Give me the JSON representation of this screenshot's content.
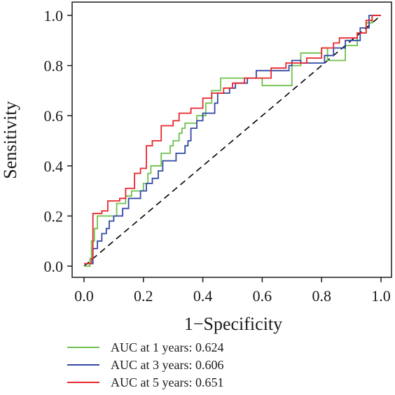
{
  "chart_data": {
    "type": "line",
    "title": "",
    "xlabel": "1−Specificity",
    "ylabel": "Sensitivity",
    "xlim": [
      0,
      1
    ],
    "ylim": [
      0,
      1
    ],
    "xticks": [
      0.0,
      0.2,
      0.4,
      0.6,
      0.8,
      1.0
    ],
    "yticks": [
      0.0,
      0.2,
      0.4,
      0.6,
      0.8,
      1.0
    ],
    "xtick_labels": [
      "0.0",
      "0.2",
      "0.4",
      "0.6",
      "0.8",
      "1.0"
    ],
    "ytick_labels": [
      "0.0",
      "0.2",
      "0.4",
      "0.6",
      "0.8",
      "1.0"
    ],
    "grid": false,
    "legend_position": "bottom",
    "reference_line": {
      "style": "dashed",
      "from": [
        0,
        0
      ],
      "to": [
        1,
        1
      ],
      "color": "#000000"
    },
    "series": [
      {
        "name": "AUC at 1 years: 0.624",
        "color": "#6ec14c",
        "points": [
          [
            0,
            0
          ],
          [
            0.02,
            0
          ],
          [
            0.02,
            0.03
          ],
          [
            0.025,
            0.03
          ],
          [
            0.025,
            0.1
          ],
          [
            0.035,
            0.1
          ],
          [
            0.035,
            0.15
          ],
          [
            0.045,
            0.15
          ],
          [
            0.045,
            0.2
          ],
          [
            0.11,
            0.2
          ],
          [
            0.11,
            0.25
          ],
          [
            0.14,
            0.25
          ],
          [
            0.14,
            0.28
          ],
          [
            0.16,
            0.28
          ],
          [
            0.16,
            0.3
          ],
          [
            0.2,
            0.3
          ],
          [
            0.2,
            0.33
          ],
          [
            0.215,
            0.33
          ],
          [
            0.215,
            0.37
          ],
          [
            0.225,
            0.37
          ],
          [
            0.225,
            0.4
          ],
          [
            0.26,
            0.4
          ],
          [
            0.26,
            0.45
          ],
          [
            0.29,
            0.45
          ],
          [
            0.29,
            0.48
          ],
          [
            0.3,
            0.48
          ],
          [
            0.3,
            0.5
          ],
          [
            0.32,
            0.5
          ],
          [
            0.32,
            0.53
          ],
          [
            0.33,
            0.53
          ],
          [
            0.33,
            0.55
          ],
          [
            0.34,
            0.55
          ],
          [
            0.34,
            0.57
          ],
          [
            0.38,
            0.57
          ],
          [
            0.38,
            0.6
          ],
          [
            0.41,
            0.6
          ],
          [
            0.41,
            0.65
          ],
          [
            0.43,
            0.65
          ],
          [
            0.43,
            0.7
          ],
          [
            0.46,
            0.7
          ],
          [
            0.46,
            0.75
          ],
          [
            0.6,
            0.75
          ],
          [
            0.6,
            0.72
          ],
          [
            0.7,
            0.72
          ],
          [
            0.7,
            0.8
          ],
          [
            0.73,
            0.8
          ],
          [
            0.73,
            0.85
          ],
          [
            0.8,
            0.85
          ],
          [
            0.8,
            0.87
          ],
          [
            0.82,
            0.87
          ],
          [
            0.82,
            0.82
          ],
          [
            0.88,
            0.82
          ],
          [
            0.88,
            0.88
          ],
          [
            0.92,
            0.88
          ],
          [
            0.92,
            0.93
          ],
          [
            0.95,
            0.93
          ],
          [
            0.95,
            0.97
          ],
          [
            0.97,
            0.97
          ],
          [
            0.97,
            1.0
          ],
          [
            1.0,
            1.0
          ]
        ]
      },
      {
        "name": "AUC at 3 years: 0.606",
        "color": "#3349a4",
        "points": [
          [
            0,
            0.01
          ],
          [
            0.03,
            0.01
          ],
          [
            0.03,
            0.07
          ],
          [
            0.045,
            0.07
          ],
          [
            0.045,
            0.1
          ],
          [
            0.06,
            0.1
          ],
          [
            0.06,
            0.13
          ],
          [
            0.075,
            0.13
          ],
          [
            0.075,
            0.15
          ],
          [
            0.085,
            0.15
          ],
          [
            0.085,
            0.18
          ],
          [
            0.1,
            0.18
          ],
          [
            0.1,
            0.2
          ],
          [
            0.13,
            0.2
          ],
          [
            0.13,
            0.23
          ],
          [
            0.15,
            0.23
          ],
          [
            0.15,
            0.27
          ],
          [
            0.19,
            0.27
          ],
          [
            0.19,
            0.3
          ],
          [
            0.21,
            0.3
          ],
          [
            0.21,
            0.33
          ],
          [
            0.23,
            0.33
          ],
          [
            0.23,
            0.35
          ],
          [
            0.25,
            0.35
          ],
          [
            0.25,
            0.38
          ],
          [
            0.265,
            0.38
          ],
          [
            0.265,
            0.42
          ],
          [
            0.31,
            0.42
          ],
          [
            0.31,
            0.45
          ],
          [
            0.34,
            0.45
          ],
          [
            0.34,
            0.48
          ],
          [
            0.35,
            0.48
          ],
          [
            0.35,
            0.5
          ],
          [
            0.36,
            0.5
          ],
          [
            0.36,
            0.55
          ],
          [
            0.38,
            0.55
          ],
          [
            0.38,
            0.58
          ],
          [
            0.4,
            0.58
          ],
          [
            0.4,
            0.61
          ],
          [
            0.44,
            0.61
          ],
          [
            0.44,
            0.65
          ],
          [
            0.45,
            0.65
          ],
          [
            0.45,
            0.69
          ],
          [
            0.49,
            0.69
          ],
          [
            0.49,
            0.71
          ],
          [
            0.51,
            0.71
          ],
          [
            0.51,
            0.73
          ],
          [
            0.55,
            0.73
          ],
          [
            0.55,
            0.75
          ],
          [
            0.58,
            0.75
          ],
          [
            0.58,
            0.78
          ],
          [
            0.69,
            0.78
          ],
          [
            0.69,
            0.8
          ],
          [
            0.7,
            0.8
          ],
          [
            0.7,
            0.82
          ],
          [
            0.73,
            0.82
          ],
          [
            0.73,
            0.81
          ],
          [
            0.81,
            0.81
          ],
          [
            0.81,
            0.84
          ],
          [
            0.84,
            0.84
          ],
          [
            0.84,
            0.87
          ],
          [
            0.88,
            0.87
          ],
          [
            0.88,
            0.9
          ],
          [
            0.93,
            0.9
          ],
          [
            0.93,
            0.95
          ],
          [
            0.96,
            0.95
          ],
          [
            0.96,
            1.0
          ],
          [
            1.0,
            1.0
          ]
        ]
      },
      {
        "name": "AUC at 5 years: 0.651",
        "color": "#e8262c",
        "points": [
          [
            0,
            0.01
          ],
          [
            0.025,
            0.01
          ],
          [
            0.025,
            0.03
          ],
          [
            0.03,
            0.03
          ],
          [
            0.03,
            0.21
          ],
          [
            0.06,
            0.21
          ],
          [
            0.06,
            0.22
          ],
          [
            0.08,
            0.22
          ],
          [
            0.08,
            0.26
          ],
          [
            0.12,
            0.26
          ],
          [
            0.12,
            0.27
          ],
          [
            0.14,
            0.27
          ],
          [
            0.14,
            0.31
          ],
          [
            0.17,
            0.31
          ],
          [
            0.17,
            0.37
          ],
          [
            0.19,
            0.37
          ],
          [
            0.19,
            0.39
          ],
          [
            0.21,
            0.39
          ],
          [
            0.21,
            0.48
          ],
          [
            0.23,
            0.48
          ],
          [
            0.23,
            0.5
          ],
          [
            0.26,
            0.5
          ],
          [
            0.26,
            0.56
          ],
          [
            0.3,
            0.56
          ],
          [
            0.3,
            0.58
          ],
          [
            0.32,
            0.58
          ],
          [
            0.32,
            0.61
          ],
          [
            0.36,
            0.61
          ],
          [
            0.36,
            0.63
          ],
          [
            0.4,
            0.63
          ],
          [
            0.4,
            0.67
          ],
          [
            0.43,
            0.67
          ],
          [
            0.43,
            0.69
          ],
          [
            0.47,
            0.69
          ],
          [
            0.47,
            0.71
          ],
          [
            0.5,
            0.71
          ],
          [
            0.5,
            0.73
          ],
          [
            0.54,
            0.73
          ],
          [
            0.54,
            0.75
          ],
          [
            0.63,
            0.75
          ],
          [
            0.63,
            0.79
          ],
          [
            0.68,
            0.79
          ],
          [
            0.68,
            0.81
          ],
          [
            0.75,
            0.81
          ],
          [
            0.75,
            0.83
          ],
          [
            0.8,
            0.83
          ],
          [
            0.8,
            0.87
          ],
          [
            0.84,
            0.87
          ],
          [
            0.84,
            0.89
          ],
          [
            0.86,
            0.89
          ],
          [
            0.86,
            0.91
          ],
          [
            0.92,
            0.91
          ],
          [
            0.92,
            0.93
          ],
          [
            0.95,
            0.93
          ],
          [
            0.95,
            0.98
          ],
          [
            0.97,
            0.98
          ],
          [
            0.97,
            1.0
          ],
          [
            1.0,
            1.0
          ]
        ]
      }
    ]
  }
}
